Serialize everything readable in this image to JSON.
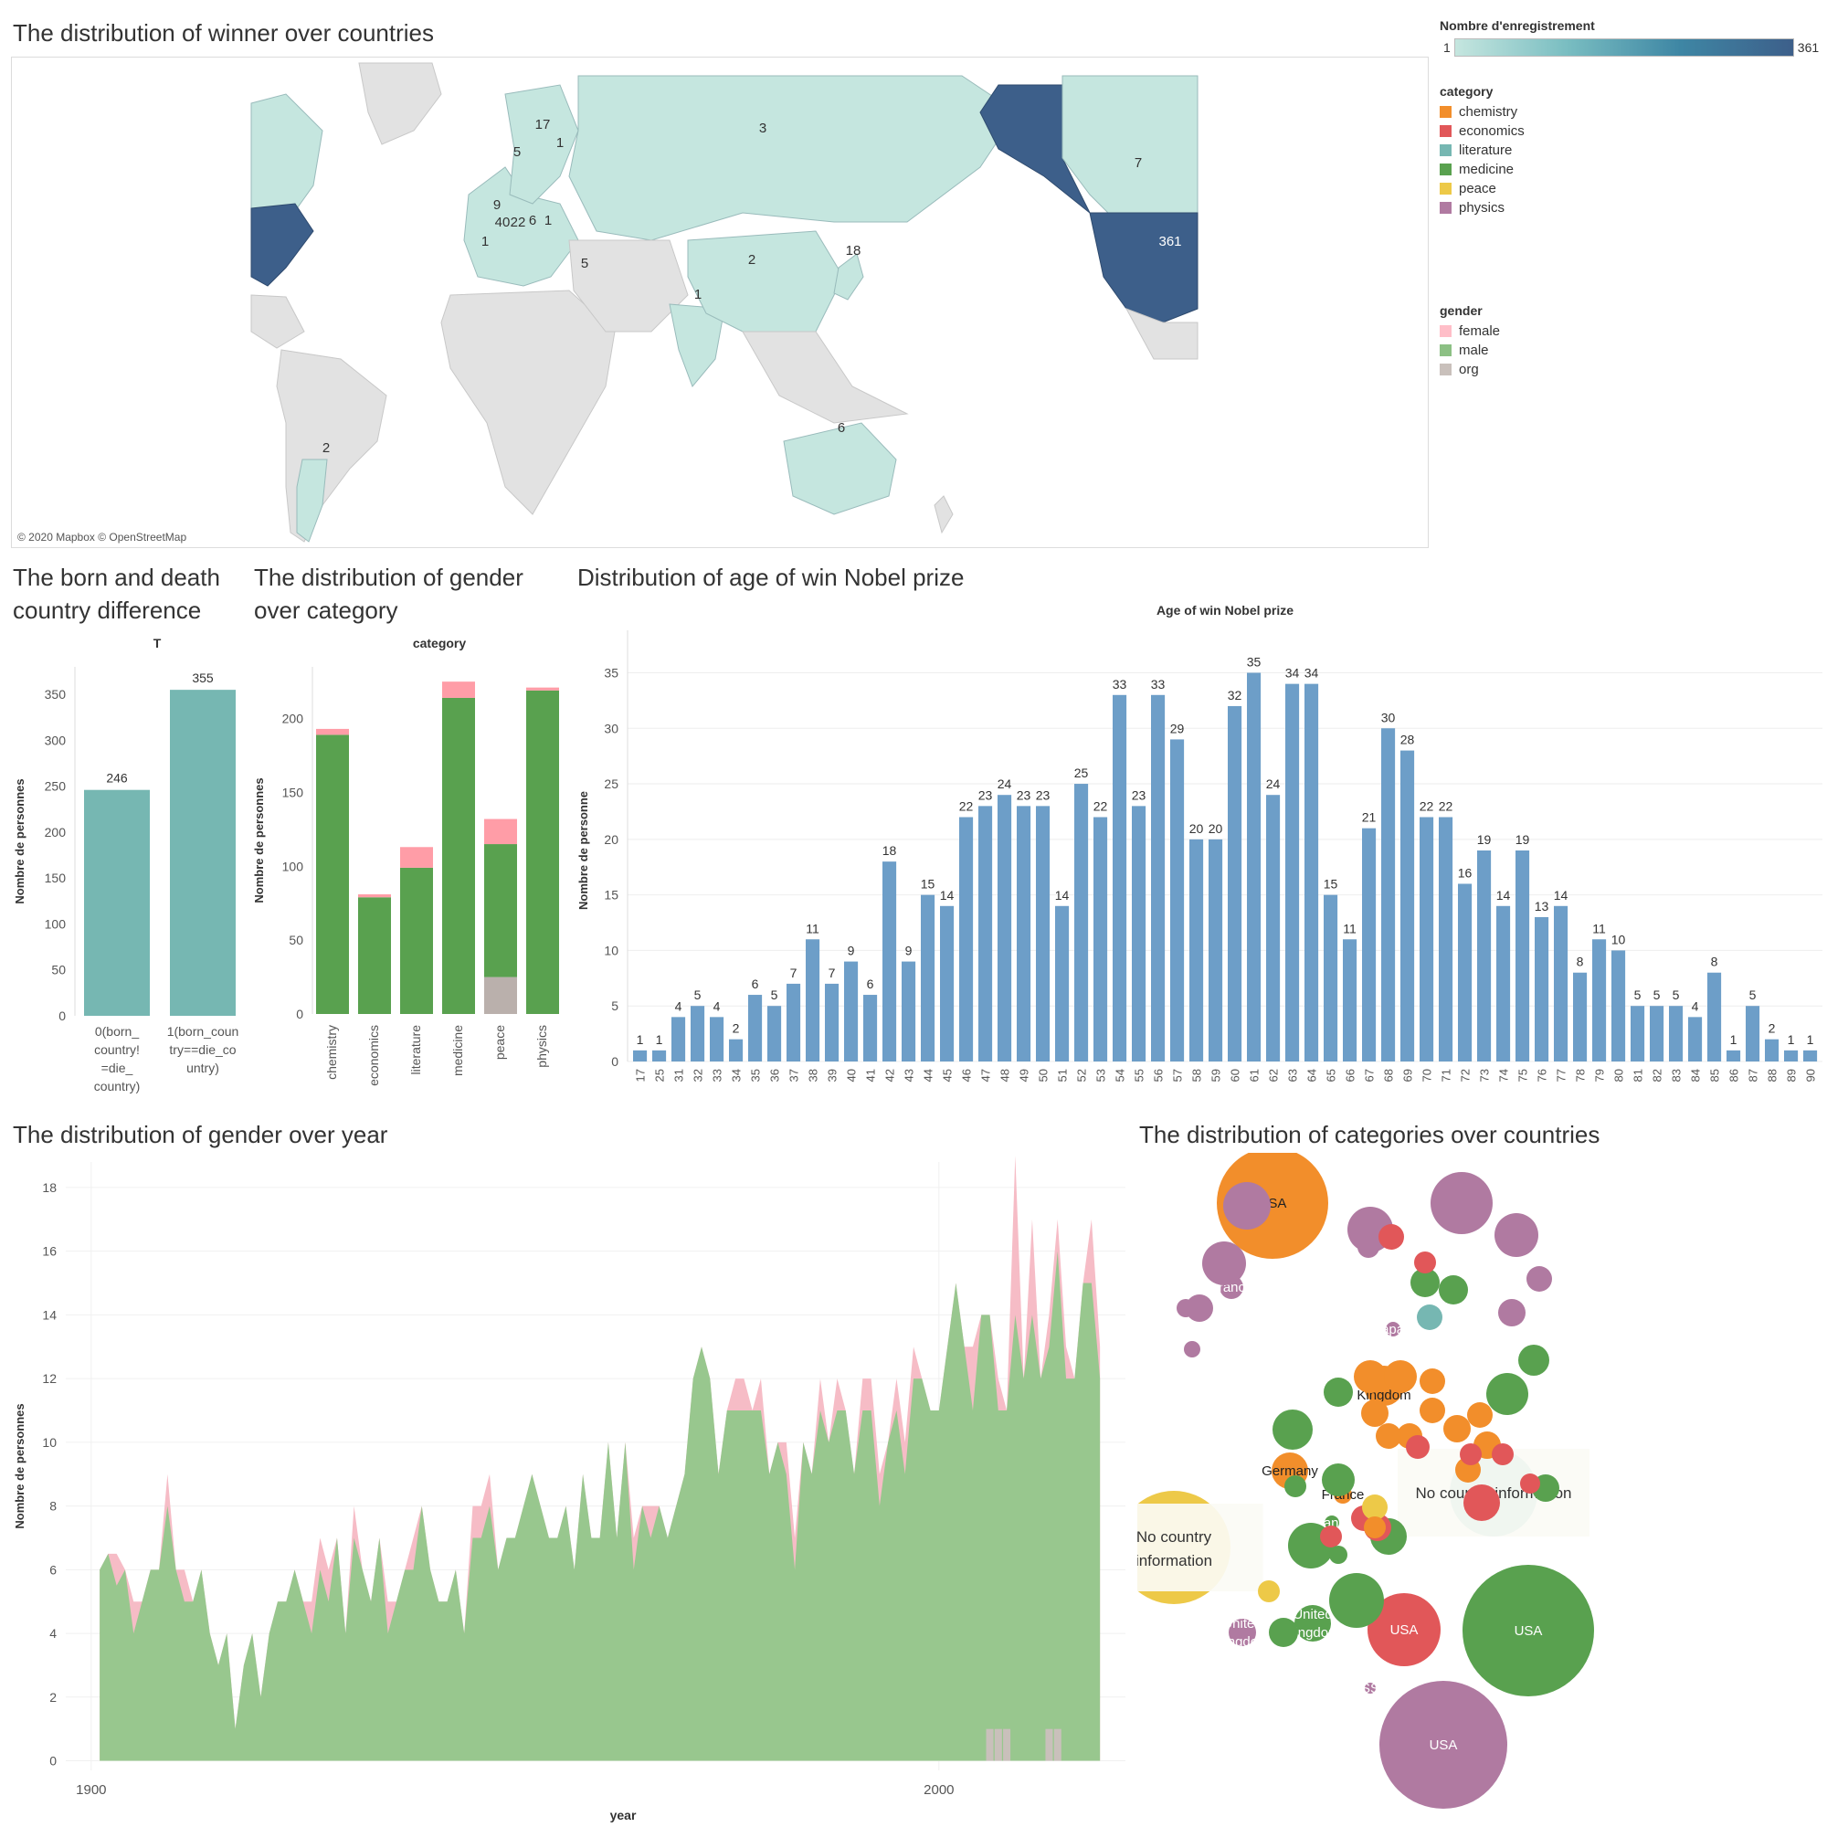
{
  "titles": {
    "map": "The distribution of winner over countries",
    "born_death": [
      "The born and death",
      "country difference"
    ],
    "gender_category": [
      "The distribution of gender",
      "over category"
    ],
    "age": "Distribution of age of win Nobel prize",
    "gender_year": "The distribution of gender over year",
    "cat_country": "The distribution of categories over countries"
  },
  "map": {
    "credit": "© 2020 Mapbox © OpenStreetMap",
    "labels": [
      "3",
      "7",
      "361",
      "17",
      "1",
      "5",
      "2",
      "18",
      "1",
      "6",
      "2",
      "5",
      "40",
      "22",
      "6",
      "1",
      "1",
      "9"
    ]
  },
  "legends": {
    "count_title": "Nombre d'enregistrement",
    "count_min": "1",
    "count_max": "361",
    "category_title": "category",
    "categories": [
      {
        "name": "chemistry",
        "color": "#f28e2b"
      },
      {
        "name": "economics",
        "color": "#e15759"
      },
      {
        "name": "literature",
        "color": "#76b7b2"
      },
      {
        "name": "medicine",
        "color": "#59a14f"
      },
      {
        "name": "peace",
        "color": "#edc948"
      },
      {
        "name": "physics",
        "color": "#b07aa1"
      }
    ],
    "gender_title": "gender",
    "genders": [
      {
        "name": "female",
        "color": "#ffbec8"
      },
      {
        "name": "male",
        "color": "#8cc084"
      },
      {
        "name": "org",
        "color": "#c9c0bb"
      }
    ]
  },
  "chart_data": [
    {
      "id": "born_death",
      "type": "bar",
      "title": "T",
      "ylabel": "Nombre de personnes",
      "categories": [
        "0(born_ country! =die_ country)",
        "1(born_coun try==die_co untry)"
      ],
      "values": [
        246,
        355
      ],
      "ylim": [
        0,
        380
      ],
      "yticks": [
        0,
        50,
        100,
        150,
        200,
        250,
        300,
        350
      ],
      "color": "#76b7b2"
    },
    {
      "id": "gender_category",
      "type": "bar",
      "title": "category",
      "ylabel": "Nombre de personnes",
      "categories": [
        "chemistry",
        "economics",
        "literature",
        "medicine",
        "peace",
        "physics"
      ],
      "series": [
        {
          "name": "org",
          "values": [
            0,
            0,
            0,
            0,
            25,
            0
          ]
        },
        {
          "name": "male",
          "values": [
            189,
            79,
            99,
            214,
            90,
            219
          ]
        },
        {
          "name": "female",
          "values": [
            4,
            2,
            14,
            11,
            17,
            2
          ]
        }
      ],
      "ylim": [
        0,
        235
      ],
      "yticks": [
        0,
        50,
        100,
        150,
        200
      ]
    },
    {
      "id": "age",
      "type": "bar",
      "title": "Age of win Nobel prize",
      "ylabel": "Nombre de personne",
      "categories": [
        "17",
        "25",
        "31",
        "32",
        "33",
        "34",
        "35",
        "36",
        "37",
        "38",
        "39",
        "40",
        "41",
        "42",
        "43",
        "44",
        "45",
        "46",
        "47",
        "48",
        "49",
        "50",
        "51",
        "52",
        "53",
        "54",
        "55",
        "56",
        "57",
        "58",
        "59",
        "60",
        "61",
        "62",
        "63",
        "64",
        "65",
        "66",
        "67",
        "68",
        "69",
        "70",
        "71",
        "72",
        "73",
        "74",
        "75",
        "76",
        "77",
        "78",
        "79",
        "80",
        "81",
        "82",
        "83",
        "84",
        "85",
        "86",
        "87",
        "88",
        "89",
        "90"
      ],
      "values": [
        1,
        1,
        4,
        5,
        4,
        2,
        6,
        5,
        7,
        11,
        7,
        9,
        6,
        18,
        9,
        15,
        14,
        22,
        23,
        24,
        23,
        23,
        14,
        25,
        22,
        33,
        23,
        33,
        29,
        20,
        20,
        32,
        35,
        24,
        34,
        34,
        15,
        11,
        21,
        30,
        28,
        22,
        22,
        16,
        19,
        14,
        19,
        13,
        14,
        8,
        11,
        10,
        5,
        5,
        5,
        4,
        8,
        1,
        5,
        2,
        1,
        1
      ],
      "ylim": [
        0,
        38
      ],
      "yticks": [
        0,
        5,
        10,
        15,
        20,
        25,
        30,
        35
      ],
      "color": "#6d9ec8"
    },
    {
      "id": "gender_year",
      "type": "area",
      "xlabel": "year",
      "ylabel": "Nombre de personnes",
      "xlim": [
        1897,
        2022
      ],
      "ylim": [
        -0.3,
        18.8
      ],
      "xticks": [
        1900,
        2000
      ],
      "yticks": [
        0,
        2,
        4,
        6,
        8,
        10,
        12,
        14,
        16,
        18
      ],
      "series": [
        {
          "name": "male",
          "x": [
            1901,
            1902,
            1903,
            1904,
            1905,
            1906,
            1907,
            1908,
            1909,
            1910,
            1911,
            1912,
            1913,
            1914,
            1915,
            1916,
            1917,
            1918,
            1919,
            1920,
            1921,
            1922,
            1923,
            1924,
            1925,
            1926,
            1927,
            1928,
            1929,
            1930,
            1931,
            1932,
            1933,
            1934,
            1935,
            1936,
            1937,
            1938,
            1939,
            1940,
            1941,
            1942,
            1943,
            1944,
            1945,
            1946,
            1947,
            1948,
            1949,
            1950,
            1951,
            1952,
            1953,
            1954,
            1955,
            1956,
            1957,
            1958,
            1959,
            1960,
            1961,
            1962,
            1963,
            1964,
            1965,
            1966,
            1967,
            1968,
            1969,
            1970,
            1971,
            1972,
            1973,
            1974,
            1975,
            1976,
            1977,
            1978,
            1979,
            1980,
            1981,
            1982,
            1983,
            1984,
            1985,
            1986,
            1987,
            1988,
            1989,
            1990,
            1991,
            1992,
            1993,
            1994,
            1995,
            1996,
            1997,
            1998,
            1999,
            2000,
            2001,
            2002,
            2003,
            2004,
            2005,
            2006,
            2007,
            2008,
            2009,
            2010,
            2011,
            2012,
            2013,
            2014,
            2015,
            2016,
            2017,
            2018,
            2019
          ],
          "values": [
            6,
            6.5,
            5.5,
            6,
            4,
            5,
            6,
            6,
            8,
            6,
            5,
            5,
            6,
            4,
            3,
            4,
            1,
            3,
            4,
            2,
            4,
            5,
            5,
            6,
            5,
            4,
            6,
            5,
            7,
            4,
            7,
            6,
            5,
            7,
            4,
            5,
            6,
            6,
            8,
            6,
            5,
            5,
            6,
            4,
            7,
            7,
            8,
            6,
            7,
            7,
            8,
            9,
            8,
            7,
            7,
            8,
            6,
            9,
            7,
            7,
            10,
            7,
            10,
            6,
            8,
            7,
            8,
            7,
            8,
            9,
            12,
            13,
            12,
            9,
            11,
            11,
            11,
            11,
            11,
            9,
            10,
            9,
            6,
            10,
            9,
            11,
            10,
            11,
            11,
            9,
            11,
            11,
            8,
            10,
            11,
            9,
            12,
            12,
            11,
            11,
            13,
            15,
            13,
            11,
            14,
            14,
            11,
            11,
            14,
            12,
            14,
            12,
            13,
            16,
            12,
            12,
            15,
            15,
            12
          ]
        },
        {
          "name": "female",
          "x": [
            1903,
            1905,
            1909,
            1911,
            1926,
            1927,
            1928,
            1931,
            1935,
            1938,
            1945,
            1946,
            1947,
            1964,
            1966,
            1976,
            1977,
            1979,
            1982,
            1983,
            1986,
            1988,
            1991,
            1992,
            1993,
            1995,
            1996,
            1997,
            2004,
            2007,
            2009,
            2011,
            2013,
            2014,
            2015,
            2018,
            2019
          ],
          "values": [
            1,
            1,
            1,
            1,
            1,
            1,
            1,
            1,
            1,
            1,
            1,
            1,
            1,
            1,
            1,
            1,
            1,
            1,
            1,
            1,
            1,
            1,
            1,
            1,
            1,
            1,
            1,
            1,
            2,
            1,
            5,
            3,
            1,
            1,
            1,
            2,
            1
          ]
        },
        {
          "name": "org",
          "x": [
            2006,
            2007,
            2008,
            2013,
            2014
          ],
          "values": [
            1,
            1,
            1,
            1,
            1
          ]
        }
      ]
    },
    {
      "id": "cat_country",
      "type": "bubble",
      "bubbles": [
        {
          "label": "USA",
          "category": "physics",
          "value": 70
        },
        {
          "label": "USA",
          "category": "medicine",
          "value": 72
        },
        {
          "label": "USA",
          "category": "chemistry",
          "value": 61
        },
        {
          "label": "USA",
          "category": "economics",
          "value": 40
        },
        {
          "label": "No country information",
          "category": "literature",
          "value": 48
        },
        {
          "label": "No country information",
          "category": "peace",
          "value": 62
        },
        {
          "label": "United Kingdom",
          "category": "chemistry",
          "value": 22
        },
        {
          "label": "Germany",
          "category": "chemistry",
          "value": 20
        },
        {
          "label": "France",
          "category": "chemistry",
          "value": 10
        },
        {
          "label": "France",
          "category": "medicine",
          "value": 8
        },
        {
          "label": "France",
          "category": "physics",
          "value": 13
        },
        {
          "label": "Japan",
          "category": "physics",
          "value": 8
        },
        {
          "label": "United Kingdom",
          "category": "medicine",
          "value": 20
        },
        {
          "label": "United Kingdom",
          "category": "physics",
          "value": 15
        },
        {
          "label": "USSR",
          "category": "physics",
          "value": 6
        }
      ]
    }
  ]
}
